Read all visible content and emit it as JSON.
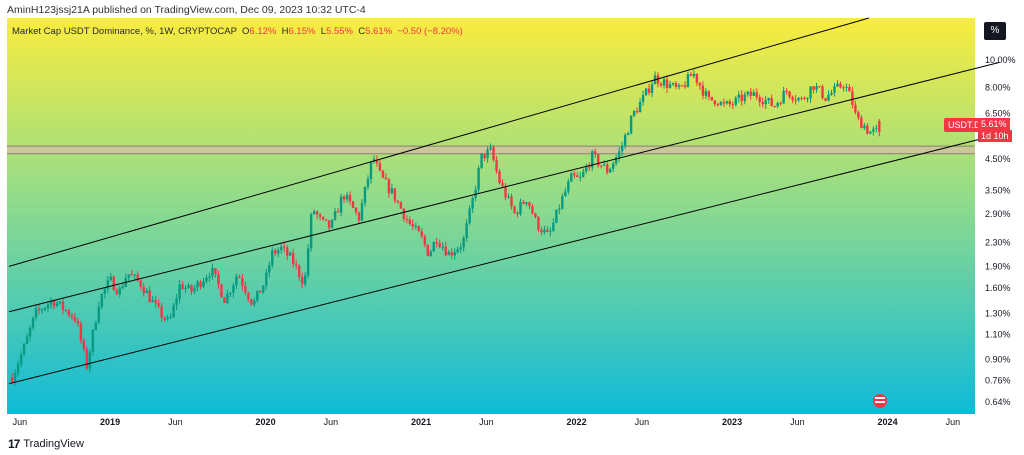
{
  "caption": "AminH123jssj21A published on TradingView.com, Dec 09, 2023 10:32 UTC-4",
  "legend": {
    "title": "Market Cap USDT Dominance, %, 1W, CRYPTOCAP",
    "o_label": "O",
    "o_value": "6.12%",
    "h_label": "H",
    "h_value": "6.15%",
    "l_label": "L",
    "l_value": "5.55%",
    "c_label": "C",
    "c_value": "5.61%",
    "change": "−0.50 (−8.20%)"
  },
  "scale_button": "%",
  "price_tag": {
    "symbol": "USDT.D",
    "value": "5.61%",
    "countdown": "1d 10h"
  },
  "footer": {
    "logo": "17",
    "brand": "TradingView"
  },
  "colors": {
    "up": "#089981",
    "down": "#f23645",
    "bg_top": "#f9ec3e",
    "bg_mid": "#90dc8c",
    "bg_bottom": "#12bcd8",
    "channel": "#000000",
    "band": "#cfc3a0"
  },
  "chart_data": {
    "type": "candlestick",
    "title": "Market Cap USDT Dominance, %, 1W, CRYPTOCAP",
    "scale": "log",
    "y_range": [
      0.58,
      14.0
    ],
    "x_range": [
      "2018-05",
      "2024-07"
    ],
    "y_ticks": [
      "10.00%",
      "8.00%",
      "6.50%",
      "5.61%",
      "4.50%",
      "3.50%",
      "2.90%",
      "2.30%",
      "1.90%",
      "1.60%",
      "1.30%",
      "1.10%",
      "0.90%",
      "0.76%",
      "0.64%"
    ],
    "y_tick_values": [
      10.0,
      8.0,
      6.5,
      5.61,
      4.5,
      3.5,
      2.9,
      2.3,
      1.9,
      1.6,
      1.3,
      1.1,
      0.9,
      0.76,
      0.64
    ],
    "x_ticks": [
      "Jun",
      "2019",
      "Jun",
      "2020",
      "Jun",
      "2021",
      "Jun",
      "2022",
      "Jun",
      "2023",
      "Jun",
      "2024",
      "Jun"
    ],
    "x_tick_positions": [
      2018.42,
      2019.0,
      2019.42,
      2020.0,
      2020.42,
      2021.0,
      2021.42,
      2022.0,
      2022.42,
      2023.0,
      2023.42,
      2024.0,
      2024.42
    ],
    "last_price": 5.61,
    "horizontal_band": [
      4.7,
      5.0
    ],
    "channel_lines": [
      {
        "name": "upper",
        "t": [
          2018.35,
          2023.88
        ],
        "v": [
          1.9,
          14.0
        ]
      },
      {
        "name": "middle",
        "t": [
          2018.35,
          2024.72
        ],
        "v": [
          1.32,
          9.8
        ]
      },
      {
        "name": "lower",
        "t": [
          2018.35,
          2024.72
        ],
        "v": [
          0.74,
          5.5
        ]
      }
    ],
    "series_close_anchors": {
      "t": [
        2018.37,
        2018.45,
        2018.52,
        2018.63,
        2018.78,
        2018.85,
        2018.93,
        2019.0,
        2019.06,
        2019.11,
        2019.2,
        2019.3,
        2019.38,
        2019.45,
        2019.52,
        2019.65,
        2019.74,
        2019.82,
        2019.92,
        2020.0,
        2020.04,
        2020.1,
        2020.17,
        2020.25,
        2020.3,
        2020.36,
        2020.42,
        2020.5,
        2020.6,
        2020.69,
        2020.74,
        2020.82,
        2020.92,
        2021.0,
        2021.05,
        2021.1,
        2021.18,
        2021.27,
        2021.33,
        2021.39,
        2021.45,
        2021.5,
        2021.6,
        2021.68,
        2021.74,
        2021.82,
        2021.9,
        2021.97,
        2022.02,
        2022.1,
        2022.2,
        2022.28,
        2022.36,
        2022.44,
        2022.5,
        2022.57,
        2022.66,
        2022.75,
        2022.85,
        2022.9,
        2022.94,
        2023.0,
        2023.07,
        2023.15,
        2023.27,
        2023.35,
        2023.45,
        2023.52,
        2023.6,
        2023.66,
        2023.72,
        2023.77,
        2023.8,
        2023.84,
        2023.88,
        2023.94
      ],
      "v": [
        0.78,
        1.0,
        1.3,
        1.45,
        1.25,
        0.85,
        1.45,
        1.7,
        1.55,
        1.8,
        1.65,
        1.35,
        1.2,
        1.65,
        1.55,
        1.85,
        1.45,
        1.8,
        1.4,
        1.7,
        2.1,
        2.2,
        2.0,
        1.65,
        3.05,
        2.7,
        2.6,
        3.4,
        2.8,
        4.6,
        3.9,
        3.4,
        2.7,
        2.4,
        2.1,
        2.4,
        2.1,
        2.3,
        3.2,
        4.6,
        4.8,
        3.8,
        2.9,
        3.3,
        2.7,
        2.4,
        3.2,
        3.9,
        3.8,
        4.6,
        4.1,
        4.8,
        6.4,
        7.5,
        8.7,
        8.3,
        7.8,
        9.0,
        7.2,
        7.3,
        6.9,
        7.0,
        7.4,
        7.6,
        6.9,
        7.8,
        7.2,
        8.2,
        7.4,
        7.8,
        8.3,
        7.2,
        6.2,
        6.0,
        5.6,
        5.61
      ]
    }
  }
}
